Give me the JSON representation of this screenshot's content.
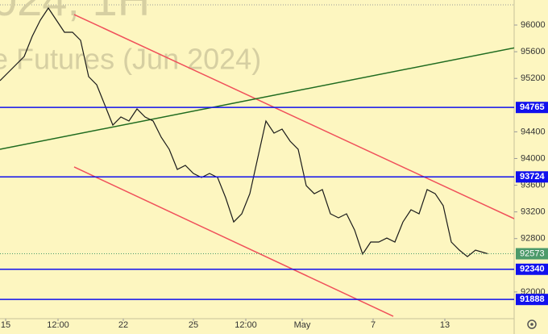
{
  "chart_data": {
    "type": "line",
    "watermark": [
      "024, 1H",
      "e Futures (Jun 2024)"
    ],
    "series": [
      {
        "color": "#1a1a1a",
        "x": [
          0,
          2,
          4,
          6,
          8,
          10,
          12,
          14,
          16,
          18,
          20,
          22,
          24,
          26,
          28,
          30,
          32,
          34,
          36,
          38,
          40,
          42,
          44,
          46,
          48,
          50,
          52,
          54,
          56,
          58,
          60,
          62,
          64,
          66,
          68,
          70,
          72,
          74,
          76,
          78,
          80,
          82,
          84,
          86,
          88,
          90,
          92,
          94,
          96,
          98,
          100,
          102,
          104,
          106,
          108,
          110,
          112,
          114,
          116,
          118,
          120,
          121
        ],
        "values": [
          95166,
          95287,
          95408,
          95529,
          95831,
          96073,
          96254,
          96073,
          95891,
          95891,
          95771,
          95226,
          95105,
          94803,
          94501,
          94622,
          94562,
          94743,
          94622,
          94562,
          94320,
          94138,
          93836,
          93897,
          93776,
          93715,
          93776,
          93715,
          93413,
          93050,
          93171,
          93473,
          94018,
          94562,
          94380,
          94441,
          94259,
          94138,
          93594,
          93473,
          93534,
          93171,
          93111,
          93171,
          92929,
          92567,
          92748,
          92748,
          92808,
          92748,
          93050,
          93232,
          93171,
          93534,
          93473,
          93292,
          92748,
          92627,
          92530,
          92627,
          92591,
          92573
        ]
      }
    ],
    "levels": [
      {
        "value": 94765,
        "color": "#1010ee"
      },
      {
        "value": 93724,
        "color": "#1010ee"
      },
      {
        "value": 92340,
        "color": "#1010ee"
      },
      {
        "value": 91888,
        "color": "#1010ee"
      }
    ],
    "current_price": 92573,
    "current_color": "#4c9a6a",
    "trend_lines": [
      {
        "color": "#f0505a",
        "x": [
          18.4,
          128
        ],
        "values": [
          96157,
          93087
        ]
      },
      {
        "color": "#f0505a",
        "x": [
          18.4,
          97.6
        ],
        "values": [
          93873,
          91636
        ]
      },
      {
        "color": "#1f6b1f",
        "x": [
          0,
          128
        ],
        "values": [
          94139,
          95662
        ]
      }
    ],
    "xlim": [
      0,
      128
    ],
    "ylim": [
      91600,
      96375
    ],
    "yticks": [
      92000,
      92800,
      93200,
      93600,
      94000,
      94400,
      95200,
      95600,
      96000
    ],
    "xticks": [
      {
        "value": 1.4,
        "label": "15"
      },
      {
        "value": 14.4,
        "label": "12:00"
      },
      {
        "value": 30.6,
        "label": "22"
      },
      {
        "value": 48,
        "label": "25"
      },
      {
        "value": 61,
        "label": "12:00"
      },
      {
        "value": 75,
        "label": "May"
      },
      {
        "value": 92.6,
        "label": "7"
      },
      {
        "value": 110.4,
        "label": "13"
      }
    ],
    "grid": false
  }
}
